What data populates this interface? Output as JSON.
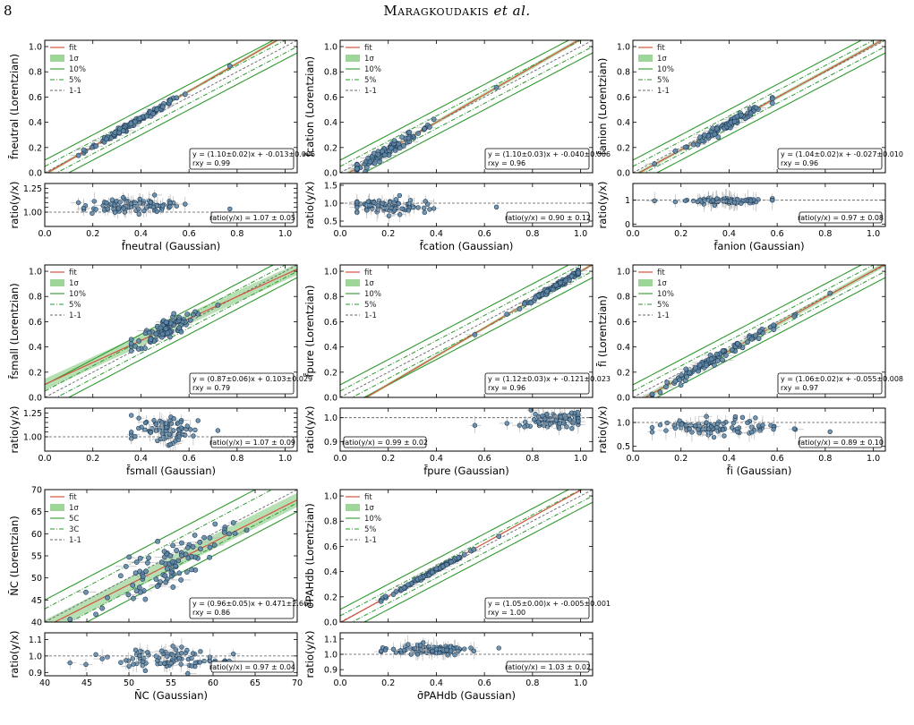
{
  "header": {
    "page_number": "8",
    "authors": "Maragkoudakis",
    "etal": "et al."
  },
  "colors": {
    "marker_fill": "#5e86a6",
    "marker_edge": "#1f3b55",
    "fit_line": "#d4553c",
    "band": "#9ed69a",
    "outer_lines": "#2f9a2f",
    "one_to_one": "#666666"
  },
  "chart_data": [
    {
      "id": "neutral",
      "type": "scatter",
      "ylabel": "f̄neutral (Lorentzian)",
      "xlabel": "f̄neutral (Gaussian)",
      "xlim": [
        0,
        1.05
      ],
      "ylim": [
        0,
        1.05
      ],
      "legend": [
        "fit",
        "1σ",
        "10%",
        "5%",
        "1-1"
      ],
      "annotation": [
        "y = (1.10±0.02)x + -0.013±0.006",
        "rxy = 0.99"
      ],
      "fit": {
        "slope": 1.1,
        "intercept": -0.013,
        "sigma": 0.012,
        "band_type": "percent",
        "outer": 0.1,
        "inner": 0.05
      },
      "x_range": [
        0.14,
        0.77
      ],
      "x_center": 0.37,
      "spread": 0.012,
      "ratio": {
        "ylim": [
          0.85,
          1.3
        ],
        "yticks": [
          1.0,
          1.05,
          1.1,
          1.15,
          1.2,
          1.25
        ],
        "tick_labels": [
          "1.00",
          "",
          "",
          "",
          "",
          "1.25"
        ],
        "ref": 1.0,
        "label": "ratio(y/x) = 1.07 ± 0.05",
        "mean": 1.07,
        "std": 0.05,
        "label_pos": "right"
      }
    },
    {
      "id": "cation",
      "type": "scatter",
      "ylabel": "f̄cation (Lorentzian)",
      "xlabel": "f̄cation (Gaussian)",
      "xlim": [
        0,
        1.05
      ],
      "ylim": [
        0,
        1.05
      ],
      "legend": [
        "fit",
        "1σ",
        "10%",
        "5%",
        "1-1"
      ],
      "annotation": [
        "y = (1.10±0.03)x + -0.040±0.006",
        "rxy = 0.96"
      ],
      "fit": {
        "slope": 1.1,
        "intercept": -0.04,
        "sigma": 0.015,
        "band_type": "percent",
        "outer": 0.1,
        "inner": 0.05
      },
      "x_range": [
        0.07,
        0.65
      ],
      "x_center": 0.2,
      "spread": 0.02,
      "ratio": {
        "ylim": [
          0.35,
          1.55
        ],
        "yticks": [
          0.5,
          1.0,
          1.5
        ],
        "tick_labels": [
          "0.5",
          "1.0",
          "1.5"
        ],
        "ref": 1.0,
        "label": "ratio(y/x) = 0.90 ± 0.12",
        "mean": 0.9,
        "std": 0.12,
        "label_pos": "right"
      }
    },
    {
      "id": "anion",
      "type": "scatter",
      "ylabel": "f̄anion (Lorentzian)",
      "xlabel": "f̄anion (Gaussian)",
      "xlim": [
        0,
        1.05
      ],
      "ylim": [
        0,
        1.05
      ],
      "legend": [
        "fit",
        "1σ",
        "10%",
        "5%",
        "1-1"
      ],
      "annotation": [
        "y = (1.04±0.02)x + -0.027±0.010",
        "rxy = 0.96"
      ],
      "fit": {
        "slope": 1.04,
        "intercept": -0.027,
        "sigma": 0.014,
        "band_type": "percent",
        "outer": 0.1,
        "inner": 0.05
      },
      "x_range": [
        0.09,
        0.58
      ],
      "x_center": 0.4,
      "spread": 0.015,
      "ratio": {
        "ylim": [
          -0.1,
          1.7
        ],
        "yticks": [
          0,
          1
        ],
        "tick_labels": [
          "0",
          "1"
        ],
        "ref": 1.0,
        "label": "ratio(y/x) = 0.97 ± 0.08",
        "mean": 0.97,
        "std": 0.08,
        "label_pos": "right"
      }
    },
    {
      "id": "small",
      "type": "scatter",
      "ylabel": "f̄small (Lorentzian)",
      "xlabel": "f̄small (Gaussian)",
      "xlim": [
        0,
        1.05
      ],
      "ylim": [
        0,
        1.05
      ],
      "legend": [
        "fit",
        "1σ",
        "10%",
        "5%",
        "1-1"
      ],
      "annotation": [
        "y = (0.87±0.06)x + 0.103±0.029",
        "rxy = 0.79"
      ],
      "fit": {
        "slope": 0.87,
        "intercept": 0.103,
        "sigma": 0.045,
        "band_type": "percent",
        "outer": 0.1,
        "inner": 0.05
      },
      "x_range": [
        0.36,
        0.72
      ],
      "x_center": 0.5,
      "spread": 0.04,
      "ratio": {
        "ylim": [
          0.85,
          1.3
        ],
        "yticks": [
          1.0,
          1.05,
          1.1,
          1.15,
          1.2,
          1.25
        ],
        "tick_labels": [
          "1.00",
          "",
          "",
          "",
          "",
          "1.25"
        ],
        "ref": 1.0,
        "label": "ratio(y/x) = 1.07 ± 0.09",
        "mean": 1.07,
        "std": 0.09,
        "label_pos": "right"
      }
    },
    {
      "id": "pure",
      "type": "scatter",
      "ylabel": "f̄pure (Lorentzian)",
      "xlabel": "f̄pure (Gaussian)",
      "xlim": [
        0,
        1.05
      ],
      "ylim": [
        0,
        1.05
      ],
      "legend": [
        "fit",
        "1σ",
        "10%",
        "5%",
        "1-1"
      ],
      "annotation": [
        "y = (1.12±0.03)x + -0.121±0.023",
        "rxy = 0.96"
      ],
      "fit": {
        "slope": 1.12,
        "intercept": -0.121,
        "sigma": 0.012,
        "band_type": "percent",
        "outer": 0.1,
        "inner": 0.05
      },
      "x_range": [
        0.56,
        0.99
      ],
      "x_center": 0.9,
      "spread": 0.01,
      "ratio": {
        "ylim": [
          0.86,
          1.04
        ],
        "yticks": [
          0.9,
          1.0
        ],
        "tick_labels": [
          "0.9",
          "1.0"
        ],
        "ref": 1.0,
        "label": "ratio(y/x) = 0.99 ± 0.02",
        "mean": 0.99,
        "std": 0.02,
        "label_pos": "left"
      }
    },
    {
      "id": "ionized",
      "type": "scatter",
      "ylabel": "f̄i (Lorentzian)",
      "xlabel": "f̄i (Gaussian)",
      "xlim": [
        0,
        1.05
      ],
      "ylim": [
        0,
        1.05
      ],
      "legend": [
        "fit",
        "1σ",
        "10%",
        "5%",
        "1-1"
      ],
      "annotation": [
        "y = (1.06±0.02)x + -0.055±0.008",
        "rxy = 0.97"
      ],
      "fit": {
        "slope": 1.06,
        "intercept": -0.055,
        "sigma": 0.02,
        "band_type": "percent",
        "outer": 0.1,
        "inner": 0.05
      },
      "x_range": [
        0.08,
        0.82
      ],
      "x_center": 0.35,
      "spread": 0.02,
      "ratio": {
        "ylim": [
          0.4,
          1.3
        ],
        "yticks": [
          0.5,
          1.0
        ],
        "tick_labels": [
          "0.5",
          "1.0"
        ],
        "ref": 1.0,
        "label": "ratio(y/x) = 0.89 ± 0.10",
        "mean": 0.89,
        "std": 0.1,
        "label_pos": "right"
      }
    },
    {
      "id": "nc",
      "type": "scatter",
      "ylabel": "N̄C (Lorentzian)",
      "xlabel": "N̄C (Gaussian)",
      "xlim": [
        40,
        70
      ],
      "ylim": [
        40,
        70
      ],
      "xticks": [
        40,
        45,
        50,
        55,
        60,
        65,
        70
      ],
      "yticks": [
        40,
        45,
        50,
        55,
        60,
        65,
        70
      ],
      "legend": [
        "fit",
        "1σ",
        "5C",
        "3C",
        "1-1"
      ],
      "annotation": [
        "y = (0.96±0.05)x + 0.471±2.661",
        "rxy = 0.86"
      ],
      "fit": {
        "slope": 0.96,
        "intercept": 0.471,
        "sigma": 1.6,
        "band_type": "absolute",
        "outer": 5,
        "inner": 3
      },
      "x_range": [
        43,
        64
      ],
      "x_center": 55,
      "spread": 2.5,
      "ratio": {
        "ylim": [
          0.88,
          1.14
        ],
        "yticks": [
          0.9,
          1.0,
          1.1
        ],
        "tick_labels": [
          "0.9",
          "1.0",
          "1.1"
        ],
        "ref": 1.0,
        "label": "ratio(y/x) = 0.97 ± 0.04",
        "mean": 0.97,
        "std": 0.04,
        "label_pos": "right"
      }
    },
    {
      "id": "sigma",
      "type": "scatter",
      "ylabel": "σ̄PAHdb (Lorentzian)",
      "xlabel": "σ̄PAHdb (Gaussian)",
      "xlim": [
        0,
        1.05
      ],
      "ylim": [
        0,
        1.05
      ],
      "legend": [
        "fit",
        "1σ",
        "10%",
        "5%",
        "1-1"
      ],
      "annotation": [
        "y = (1.05±0.00)x + -0.005±0.001",
        "rxy = 1.00"
      ],
      "fit": {
        "slope": 1.05,
        "intercept": -0.005,
        "sigma": 0.004,
        "band_type": "percent",
        "outer": 0.1,
        "inner": 0.05
      },
      "x_range": [
        0.17,
        0.66
      ],
      "x_center": 0.38,
      "spread": 0.006,
      "ratio": {
        "ylim": [
          0.86,
          1.14
        ],
        "yticks": [
          0.9,
          1.0,
          1.1
        ],
        "tick_labels": [
          "0.9",
          "1.0",
          "1.1"
        ],
        "ref": 1.0,
        "label": "ratio(y/x) = 1.03 ± 0.02",
        "mean": 1.03,
        "std": 0.02,
        "label_pos": "right"
      }
    }
  ]
}
